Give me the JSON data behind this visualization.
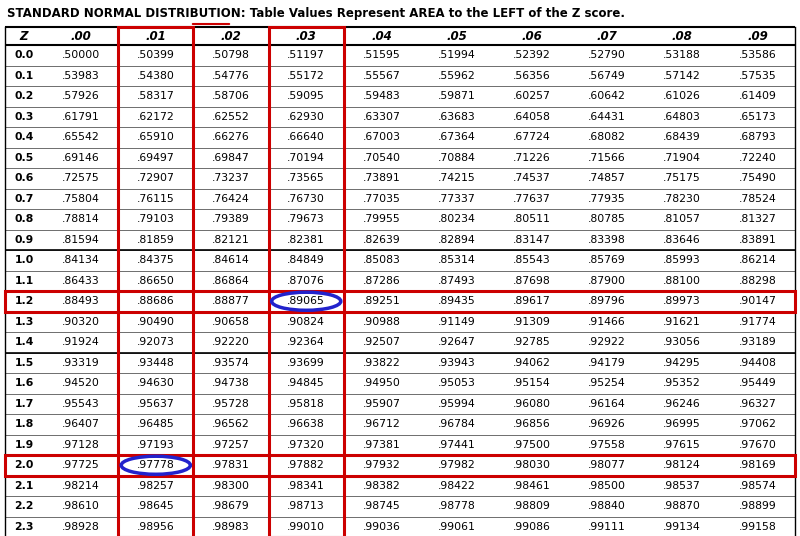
{
  "title": "STANDARD NORMAL DISTRIBUTION: Table Values Represent AREA to the LEFT of the Z score.",
  "columns": [
    "Z",
    ".00",
    ".01",
    ".02",
    ".03",
    ".04",
    ".05",
    ".06",
    ".07",
    ".08",
    ".09"
  ],
  "rows": [
    [
      "0.0",
      ".50000",
      ".50399",
      ".50798",
      ".51197",
      ".51595",
      ".51994",
      ".52392",
      ".52790",
      ".53188",
      ".53586"
    ],
    [
      "0.1",
      ".53983",
      ".54380",
      ".54776",
      ".55172",
      ".55567",
      ".55962",
      ".56356",
      ".56749",
      ".57142",
      ".57535"
    ],
    [
      "0.2",
      ".57926",
      ".58317",
      ".58706",
      ".59095",
      ".59483",
      ".59871",
      ".60257",
      ".60642",
      ".61026",
      ".61409"
    ],
    [
      "0.3",
      ".61791",
      ".62172",
      ".62552",
      ".62930",
      ".63307",
      ".63683",
      ".64058",
      ".64431",
      ".64803",
      ".65173"
    ],
    [
      "0.4",
      ".65542",
      ".65910",
      ".66276",
      ".66640",
      ".67003",
      ".67364",
      ".67724",
      ".68082",
      ".68439",
      ".68793"
    ],
    [
      "0.5",
      ".69146",
      ".69497",
      ".69847",
      ".70194",
      ".70540",
      ".70884",
      ".71226",
      ".71566",
      ".71904",
      ".72240"
    ],
    [
      "0.6",
      ".72575",
      ".72907",
      ".73237",
      ".73565",
      ".73891",
      ".74215",
      ".74537",
      ".74857",
      ".75175",
      ".75490"
    ],
    [
      "0.7",
      ".75804",
      ".76115",
      ".76424",
      ".76730",
      ".77035",
      ".77337",
      ".77637",
      ".77935",
      ".78230",
      ".78524"
    ],
    [
      "0.8",
      ".78814",
      ".79103",
      ".79389",
      ".79673",
      ".79955",
      ".80234",
      ".80511",
      ".80785",
      ".81057",
      ".81327"
    ],
    [
      "0.9",
      ".81594",
      ".81859",
      ".82121",
      ".82381",
      ".82639",
      ".82894",
      ".83147",
      ".83398",
      ".83646",
      ".83891"
    ],
    [
      "1.0",
      ".84134",
      ".84375",
      ".84614",
      ".84849",
      ".85083",
      ".85314",
      ".85543",
      ".85769",
      ".85993",
      ".86214"
    ],
    [
      "1.1",
      ".86433",
      ".86650",
      ".86864",
      ".87076",
      ".87286",
      ".87493",
      ".87698",
      ".87900",
      ".88100",
      ".88298"
    ],
    [
      "1.2",
      ".88493",
      ".88686",
      ".88877",
      ".89065",
      ".89251",
      ".89435",
      ".89617",
      ".89796",
      ".89973",
      ".90147"
    ],
    [
      "1.3",
      ".90320",
      ".90490",
      ".90658",
      ".90824",
      ".90988",
      ".91149",
      ".91309",
      ".91466",
      ".91621",
      ".91774"
    ],
    [
      "1.4",
      ".91924",
      ".92073",
      ".92220",
      ".92364",
      ".92507",
      ".92647",
      ".92785",
      ".92922",
      ".93056",
      ".93189"
    ],
    [
      "1.5",
      ".93319",
      ".93448",
      ".93574",
      ".93699",
      ".93822",
      ".93943",
      ".94062",
      ".94179",
      ".94295",
      ".94408"
    ],
    [
      "1.6",
      ".94520",
      ".94630",
      ".94738",
      ".94845",
      ".94950",
      ".95053",
      ".95154",
      ".95254",
      ".95352",
      ".95449"
    ],
    [
      "1.7",
      ".95543",
      ".95637",
      ".95728",
      ".95818",
      ".95907",
      ".95994",
      ".96080",
      ".96164",
      ".96246",
      ".96327"
    ],
    [
      "1.8",
      ".96407",
      ".96485",
      ".96562",
      ".96638",
      ".96712",
      ".96784",
      ".96856",
      ".96926",
      ".96995",
      ".97062"
    ],
    [
      "1.9",
      ".97128",
      ".97193",
      ".97257",
      ".97320",
      ".97381",
      ".97441",
      ".97500",
      ".97558",
      ".97615",
      ".97670"
    ],
    [
      "2.0",
      ".97725",
      ".97778",
      ".97831",
      ".97882",
      ".97932",
      ".97982",
      ".98030",
      ".98077",
      ".98124",
      ".98169"
    ],
    [
      "2.1",
      ".98214",
      ".98257",
      ".98300",
      ".98341",
      ".98382",
      ".98422",
      ".98461",
      ".98500",
      ".98537",
      ".98574"
    ],
    [
      "2.2",
      ".98610",
      ".98645",
      ".98679",
      ".98713",
      ".98745",
      ".98778",
      ".98809",
      ".98840",
      ".98870",
      ".98899"
    ],
    [
      "2.3",
      ".98928",
      ".98956",
      ".98983",
      ".99010",
      ".99036",
      ".99061",
      ".99086",
      ".99111",
      ".99134",
      ".99158"
    ]
  ],
  "highlight_row_1": 12,
  "highlight_row_2": 20,
  "highlight_col_01": 2,
  "highlight_col_03": 4,
  "circle_cell_1_row": 12,
  "circle_cell_1_col": 4,
  "circle_cell_2_row": 20,
  "circle_cell_2_col": 2,
  "red_box_color": "#cc0000",
  "blue_circle_color": "#2222cc",
  "bg_color": "#ffffff",
  "title_fontsize": 8.5,
  "header_fontsize": 8.5,
  "data_fontsize": 7.8,
  "group_thick_rows": [
    0,
    10,
    15,
    21
  ],
  "underline_col_03": true
}
